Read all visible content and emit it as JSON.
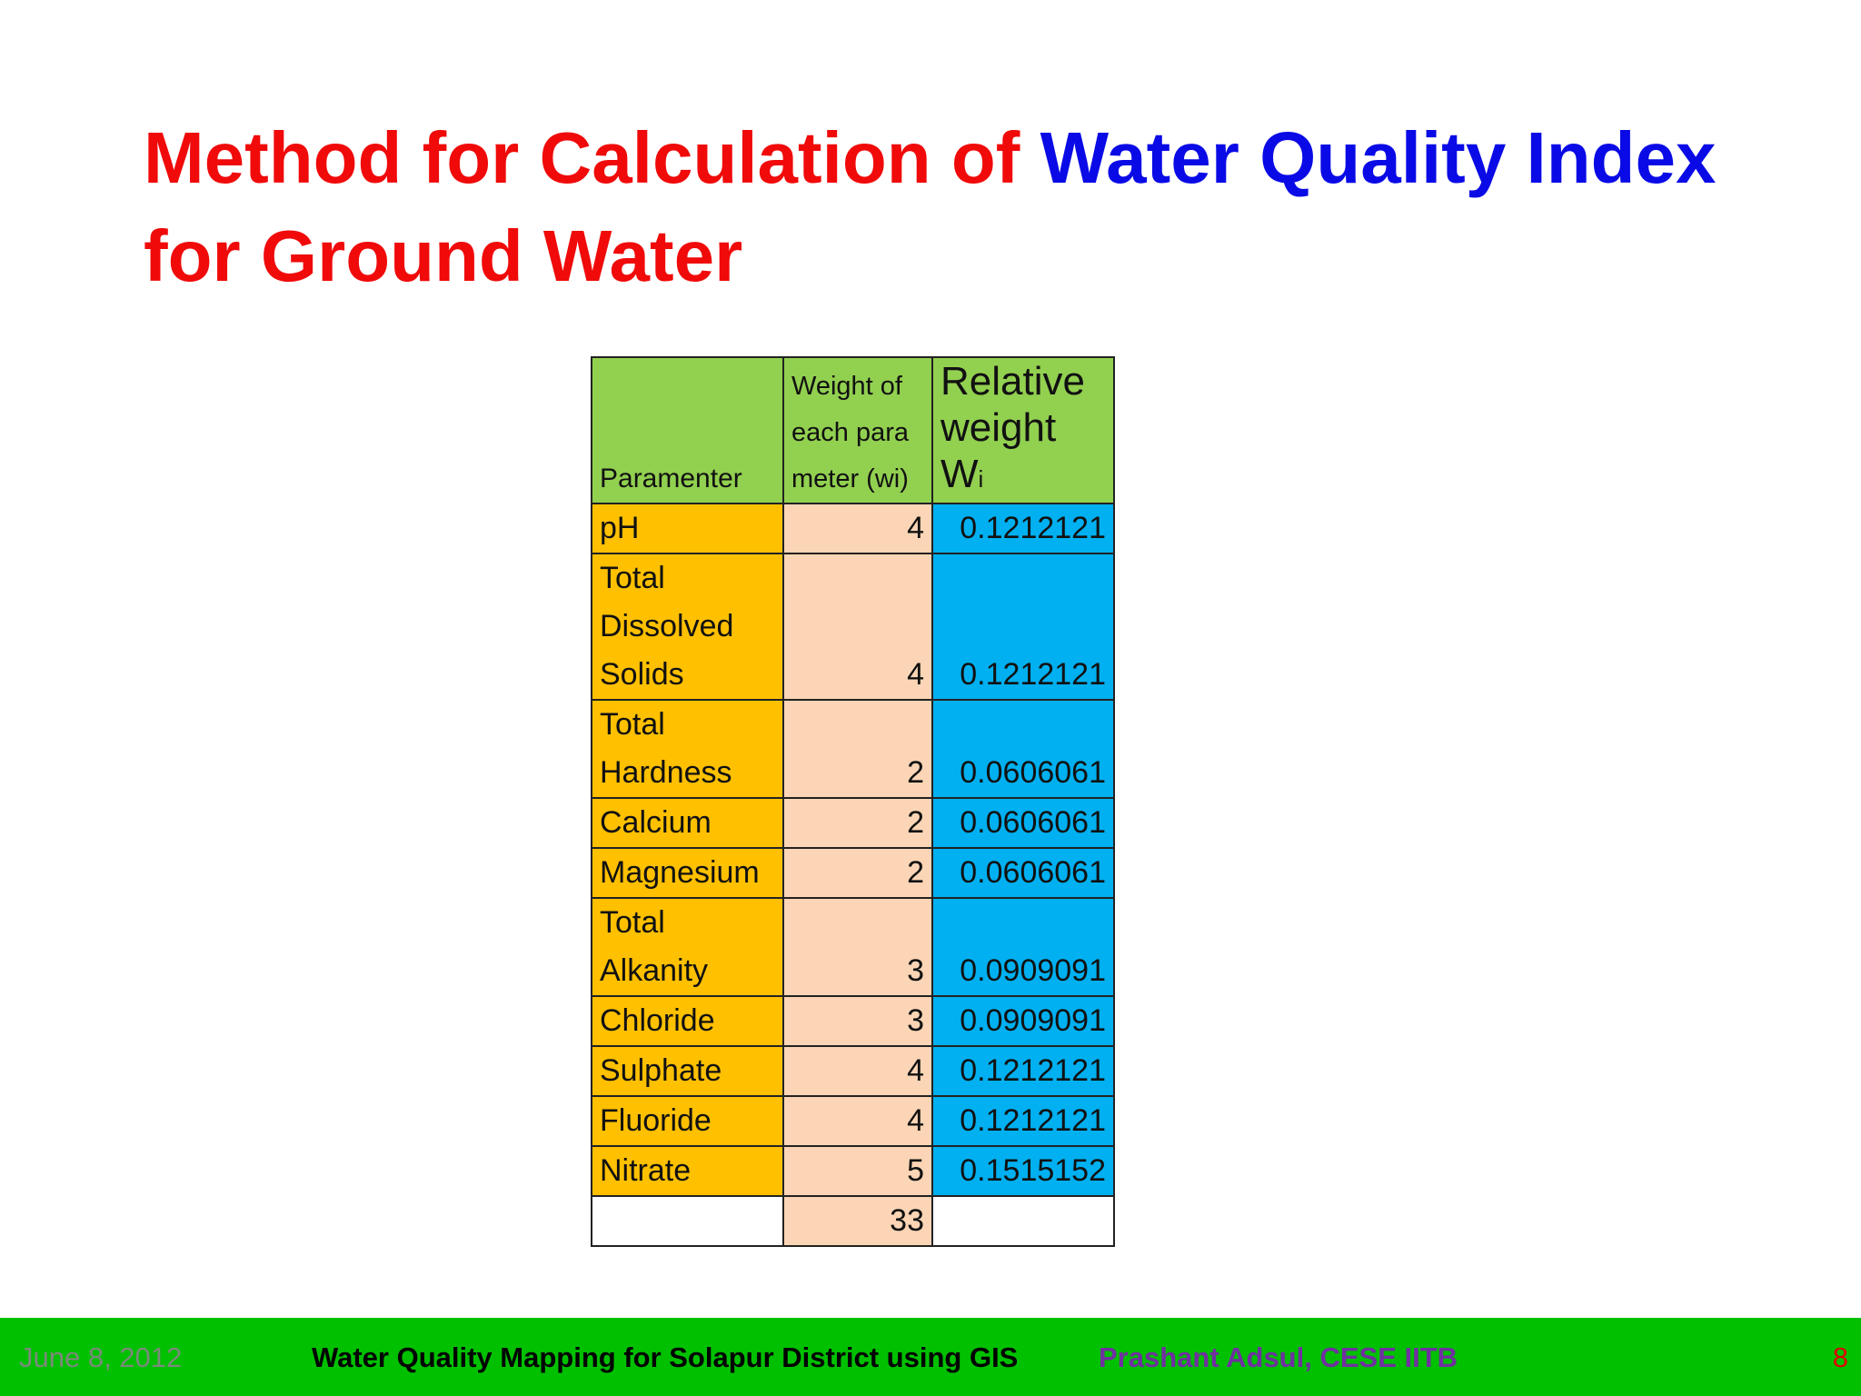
{
  "title": {
    "part1": "Method for Calculation of ",
    "part2": "Water Quality Index",
    "part3": "for Ground Water"
  },
  "table": {
    "header": [
      "Paramenter",
      "Weight of each parameter (wi)",
      "Relative weight W"
    ],
    "header_subscript": "i",
    "rows": [
      [
        "pH",
        4,
        0.1212121
      ],
      [
        "Total Dissolved Solids",
        4,
        0.1212121
      ],
      [
        "Total Hardness",
        2,
        0.0606061
      ],
      [
        "Calcium",
        2,
        0.0606061
      ],
      [
        "Magnesium",
        2,
        0.0606061
      ],
      [
        "Total Alkanity",
        3,
        0.0909091
      ],
      [
        "Chloride",
        3,
        0.0909091
      ],
      [
        "Sulphate",
        4,
        0.1212121
      ],
      [
        "Fluoride",
        4,
        0.1212121
      ],
      [
        "Nitrate",
        5,
        0.1515152
      ]
    ],
    "total": 33
  },
  "footer": {
    "date": "June 8, 2012",
    "title": "Water Quality Mapping for Solapur District using GIS",
    "author": "Prashant Adsul, CESE IITB",
    "page": 8
  }
}
